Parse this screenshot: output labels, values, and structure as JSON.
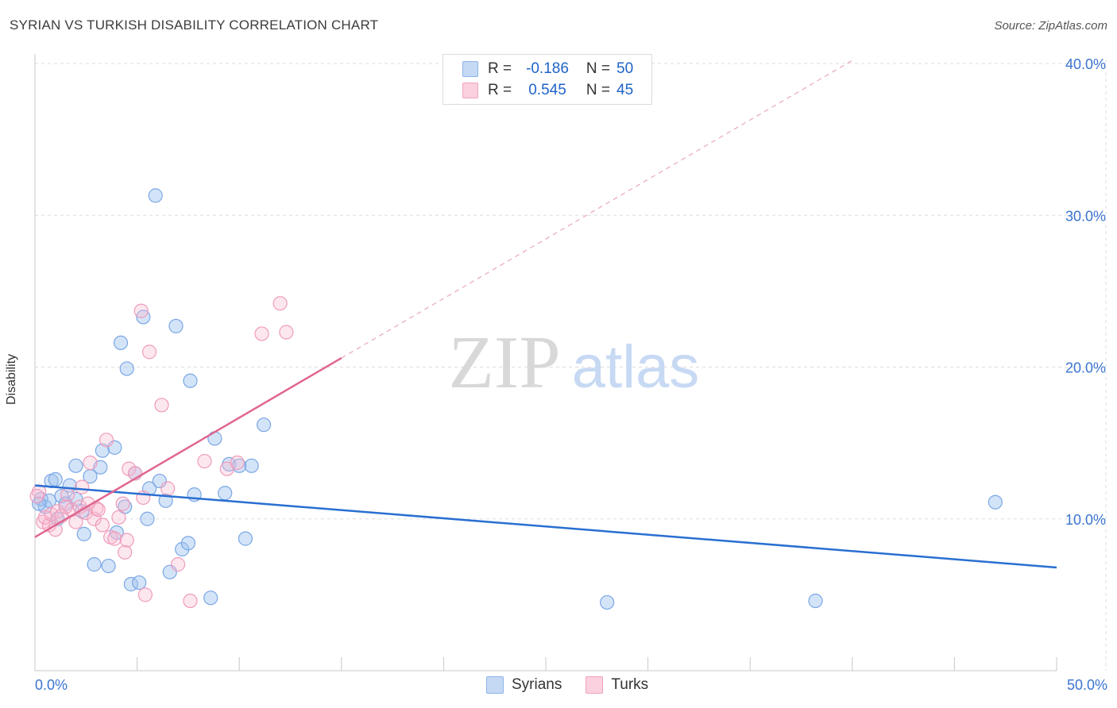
{
  "title": "SYRIAN VS TURKISH DISABILITY CORRELATION CHART",
  "source": "Source: ZipAtlas.com",
  "watermark": {
    "zip": "ZIP",
    "atlas": "atlas"
  },
  "legend": {
    "series1": {
      "r_label": "R =",
      "r_value": "-0.186",
      "n_label": "N =",
      "n_value": "50"
    },
    "series2": {
      "r_label": "R =",
      "r_value": "0.545",
      "n_label": "N =",
      "n_value": "45"
    }
  },
  "bottom_legend": {
    "series1": "Syrians",
    "series2": "Turks"
  },
  "chart_data": {
    "type": "scatter",
    "title": "SYRIAN VS TURKISH DISABILITY CORRELATION CHART",
    "xlabel": "",
    "ylabel": "Disability",
    "xlim": [
      0,
      50
    ],
    "ylim": [
      0,
      40
    ],
    "x_tick_labels": [
      "0.0%",
      "50.0%"
    ],
    "y_ticks": [
      10,
      20,
      30,
      40
    ],
    "y_tick_labels": [
      "10.0%",
      "20.0%",
      "30.0%",
      "40.0%"
    ],
    "colors": {
      "syrians": "#6b9fe6",
      "turks": "#f199b8",
      "syrians_line": "#2a6fd1",
      "turks_line": "#e0668f"
    },
    "series": [
      {
        "name": "Syrians",
        "r": -0.186,
        "n": 50,
        "trend": {
          "x": [
            0,
            50
          ],
          "y": [
            12.2,
            6.8
          ]
        },
        "points": [
          [
            0.3,
            11.3
          ],
          [
            0.5,
            10.8
          ],
          [
            0.7,
            11.2
          ],
          [
            0.8,
            12.5
          ],
          [
            1.0,
            12.6
          ],
          [
            1.3,
            11.5
          ],
          [
            1.5,
            11.0
          ],
          [
            1.7,
            12.2
          ],
          [
            2.0,
            13.5
          ],
          [
            2.3,
            10.5
          ],
          [
            2.4,
            9.0
          ],
          [
            2.7,
            12.8
          ],
          [
            2.9,
            7.0
          ],
          [
            3.2,
            13.4
          ],
          [
            3.3,
            14.5
          ],
          [
            3.6,
            6.9
          ],
          [
            3.9,
            14.7
          ],
          [
            4.0,
            9.1
          ],
          [
            4.2,
            21.6
          ],
          [
            4.4,
            10.8
          ],
          [
            4.5,
            19.9
          ],
          [
            4.7,
            5.7
          ],
          [
            4.9,
            13.0
          ],
          [
            5.1,
            5.8
          ],
          [
            5.3,
            23.3
          ],
          [
            5.5,
            10.0
          ],
          [
            5.6,
            12.0
          ],
          [
            5.9,
            31.3
          ],
          [
            6.1,
            12.5
          ],
          [
            6.4,
            11.2
          ],
          [
            6.6,
            6.5
          ],
          [
            6.9,
            22.7
          ],
          [
            7.2,
            8.0
          ],
          [
            7.5,
            8.4
          ],
          [
            7.6,
            19.1
          ],
          [
            7.8,
            11.6
          ],
          [
            8.6,
            4.8
          ],
          [
            8.8,
            15.3
          ],
          [
            9.3,
            11.7
          ],
          [
            9.5,
            13.6
          ],
          [
            10.0,
            13.5
          ],
          [
            10.3,
            8.7
          ],
          [
            10.6,
            13.5
          ],
          [
            11.2,
            16.2
          ],
          [
            28.0,
            4.5
          ],
          [
            38.2,
            4.6
          ],
          [
            47.0,
            11.1
          ],
          [
            0.2,
            11.0
          ],
          [
            1.1,
            10.0
          ],
          [
            2.0,
            11.3
          ]
        ]
      },
      {
        "name": "Turks",
        "r": 0.545,
        "n": 45,
        "trend": {
          "x": [
            0,
            15
          ],
          "y": [
            8.8,
            20.6
          ]
        },
        "trend_dashed": {
          "x": [
            15,
            40
          ],
          "y": [
            20.6,
            40.2
          ]
        },
        "points": [
          [
            0.2,
            11.8
          ],
          [
            0.4,
            9.8
          ],
          [
            0.5,
            10.1
          ],
          [
            0.7,
            9.6
          ],
          [
            0.8,
            10.3
          ],
          [
            1.0,
            9.3
          ],
          [
            1.1,
            10.5
          ],
          [
            1.3,
            10.2
          ],
          [
            1.6,
            11.6
          ],
          [
            1.8,
            10.6
          ],
          [
            2.0,
            9.8
          ],
          [
            2.2,
            10.8
          ],
          [
            2.3,
            12.1
          ],
          [
            2.5,
            10.4
          ],
          [
            2.6,
            11.0
          ],
          [
            2.7,
            13.7
          ],
          [
            2.9,
            10.0
          ],
          [
            3.0,
            10.7
          ],
          [
            3.1,
            10.6
          ],
          [
            3.3,
            9.6
          ],
          [
            3.5,
            15.2
          ],
          [
            3.7,
            8.8
          ],
          [
            3.9,
            8.7
          ],
          [
            4.1,
            10.1
          ],
          [
            4.3,
            11.0
          ],
          [
            4.4,
            7.8
          ],
          [
            4.5,
            8.6
          ],
          [
            4.6,
            13.3
          ],
          [
            4.9,
            13.0
          ],
          [
            5.2,
            23.7
          ],
          [
            5.3,
            11.4
          ],
          [
            5.4,
            5.0
          ],
          [
            5.6,
            21.0
          ],
          [
            6.2,
            17.5
          ],
          [
            6.5,
            12.0
          ],
          [
            7.0,
            7.0
          ],
          [
            7.6,
            4.6
          ],
          [
            8.3,
            13.8
          ],
          [
            9.4,
            13.3
          ],
          [
            9.9,
            13.7
          ],
          [
            11.1,
            22.2
          ],
          [
            12.0,
            24.2
          ],
          [
            12.3,
            22.3
          ],
          [
            0.1,
            11.5
          ],
          [
            1.5,
            10.8
          ]
        ]
      }
    ]
  }
}
